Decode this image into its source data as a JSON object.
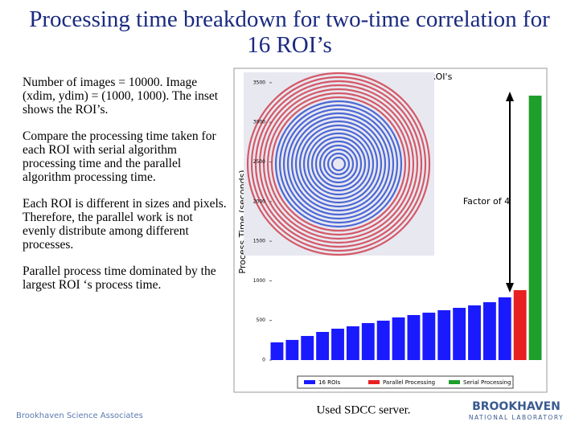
{
  "slide": {
    "title": "Processing time breakdown for two-time correlation for 16 ROI’s",
    "paragraphs": [
      "Number of images = 10000. Image (xdim, ydim) = (1000, 1000). The inset shows the ROI’s.",
      "Compare the processing time taken for each ROI with serial algorithm processing time and the parallel algorithm processing time.",
      "Each ROI is different in sizes and pixels.  Therefore, the parallel work is not evenly distribute among different processes.",
      "Parallel process time dominated by the largest ROI ‘s process time."
    ],
    "note": "Used SDCC server.",
    "footer_left": "Brookhaven Science Associates",
    "logo_main": "BROOKHAVEN",
    "logo_sub": "NATIONAL LABORATORY"
  },
  "chart_data": {
    "type": "bar",
    "title": "Process time Vs ROI's",
    "y_label": "Process Time (seconds)",
    "annotation": "Factor of 4",
    "categories": [
      null,
      null,
      null,
      null,
      null,
      null,
      null,
      null,
      null,
      null,
      null,
      null,
      null,
      null,
      null,
      null,
      null,
      null
    ],
    "series": [
      {
        "name": "16 ROIs",
        "color": "#1a1aff",
        "values": [
          223,
          254,
          304,
          355,
          396,
          426,
          467,
          497,
          538,
          568,
          598,
          629,
          659,
          690,
          730,
          791,
          null,
          null
        ]
      },
      {
        "name": "Parallel Processing",
        "color": "#e82020",
        "values": [
          null,
          null,
          null,
          null,
          null,
          null,
          null,
          null,
          null,
          null,
          null,
          null,
          null,
          null,
          null,
          null,
          882,
          null
        ]
      },
      {
        "name": "Serial Processing",
        "color": "#1e9e2a",
        "values": [
          null,
          null,
          null,
          null,
          null,
          null,
          null,
          null,
          null,
          null,
          null,
          null,
          null,
          null,
          null,
          null,
          null,
          3337
        ]
      }
    ],
    "ylim": [
      0,
      3600
    ],
    "yticks": [
      0,
      500,
      1000,
      1500,
      2000,
      2500,
      3000,
      3500
    ],
    "legend": "bottom"
  }
}
